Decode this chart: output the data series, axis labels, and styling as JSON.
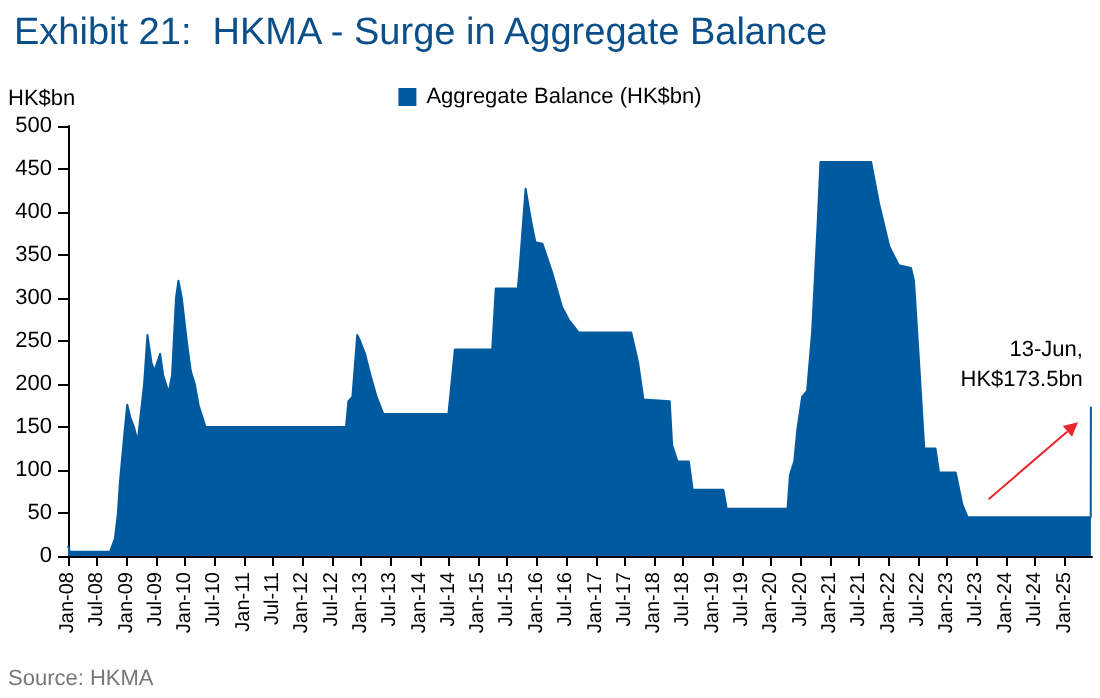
{
  "chart_data": {
    "type": "area",
    "title": "Exhibit 21:  HKMA - Surge in Aggregate Balance",
    "ylabel": "HK$bn",
    "annotations": [
      {
        "text": "13-Jun,\nHK$173.5bn",
        "x": "2025-06-13",
        "y": 173.5
      },
      "Source: HKMA"
    ],
    "x": [
      "2008-01-01",
      "2008-01-13",
      "2008-09-19",
      "2008-10-19",
      "2008-11-07",
      "2008-11-19",
      "2008-12-16",
      "2009-01-04",
      "2009-01-25",
      "2009-02-15",
      "2009-03-10",
      "2009-04-01",
      "2009-04-19",
      "2009-05-10",
      "2009-06-04",
      "2009-06-22",
      "2009-07-28",
      "2009-08-16",
      "2009-09-19",
      "2009-10-10",
      "2009-11-04",
      "2009-11-19",
      "2009-12-10",
      "2010-01-10",
      "2010-02-04",
      "2010-03-01",
      "2010-03-25",
      "2010-05-07",
      "2012-09-28",
      "2012-10-13",
      "2012-11-07",
      "2012-12-07",
      "2012-12-25",
      "2013-01-25",
      "2013-02-28",
      "2013-04-07",
      "2013-05-19",
      "2014-06-28",
      "2014-08-07",
      "2015-03-28",
      "2015-04-19",
      "2015-08-22",
      "2015-08-28",
      "2015-09-13",
      "2015-10-22",
      "2015-11-25",
      "2015-12-22",
      "2016-02-04",
      "2016-04-04",
      "2016-06-04",
      "2016-07-16",
      "2016-09-16",
      "2017-08-10",
      "2017-09-22",
      "2017-10-25",
      "2018-04-07",
      "2018-04-22",
      "2018-05-25",
      "2018-08-04",
      "2018-08-28",
      "2019-03-07",
      "2019-03-28",
      "2020-04-10",
      "2020-04-25",
      "2020-05-22",
      "2020-06-10",
      "2020-07-10",
      "2020-08-10",
      "2020-09-10",
      "2020-10-13",
      "2020-11-01",
      "2021-09-13",
      "2021-11-01",
      "2022-01-04",
      "2022-03-04",
      "2022-05-19",
      "2022-06-07",
      "2022-07-07",
      "2022-08-10",
      "2022-10-19",
      "2022-11-10",
      "2023-02-22",
      "2023-04-04",
      "2023-05-07",
      "2025-06-12",
      "2025-06-13"
    ],
    "series": [
      {
        "name": "Aggregate Balance (HK$bn)",
        "color": "#005aa0",
        "values": [
          12,
          5,
          5,
          20,
          50,
          85,
          140,
          176,
          160,
          150,
          133,
          170,
          200,
          257,
          225,
          215,
          235,
          210,
          190,
          210,
          300,
          320,
          300,
          250,
          215,
          200,
          175,
          150,
          150,
          180,
          185,
          257,
          250,
          235,
          210,
          185,
          165,
          165,
          240,
          240,
          311,
          311,
          300,
          330,
          427,
          390,
          365,
          363,
          330,
          290,
          275,
          260,
          260,
          225,
          182,
          180,
          129,
          110,
          110,
          77,
          77,
          55,
          55,
          94,
          110,
          147,
          185,
          192,
          260,
          380,
          458,
          458,
          410,
          360,
          338,
          335,
          320,
          230,
          125,
          125,
          97,
          97,
          60,
          45,
          45,
          173.5
        ]
      }
    ],
    "xlim": [
      "2008-01-01",
      "2025-06-20"
    ],
    "xticks": [
      {
        "value": "2008-01-01",
        "label": "Jan-08"
      },
      {
        "value": "2008-07-01",
        "label": "Jul-08"
      },
      {
        "value": "2009-01-01",
        "label": "Jan-09"
      },
      {
        "value": "2009-07-01",
        "label": "Jul-09"
      },
      {
        "value": "2010-01-01",
        "label": "Jan-10"
      },
      {
        "value": "2010-07-01",
        "label": "Jul-10"
      },
      {
        "value": "2011-01-01",
        "label": "Jan-11"
      },
      {
        "value": "2011-07-01",
        "label": "Jul-11"
      },
      {
        "value": "2012-01-01",
        "label": "Jan-12"
      },
      {
        "value": "2012-07-01",
        "label": "Jul-12"
      },
      {
        "value": "2013-01-01",
        "label": "Jan-13"
      },
      {
        "value": "2013-07-01",
        "label": "Jul-13"
      },
      {
        "value": "2014-01-01",
        "label": "Jan-14"
      },
      {
        "value": "2014-07-01",
        "label": "Jul-14"
      },
      {
        "value": "2015-01-01",
        "label": "Jan-15"
      },
      {
        "value": "2015-07-01",
        "label": "Jul-15"
      },
      {
        "value": "2016-01-01",
        "label": "Jan-16"
      },
      {
        "value": "2016-07-01",
        "label": "Jul-16"
      },
      {
        "value": "2017-01-01",
        "label": "Jan-17"
      },
      {
        "value": "2017-07-01",
        "label": "Jul-17"
      },
      {
        "value": "2018-01-01",
        "label": "Jan-18"
      },
      {
        "value": "2018-07-01",
        "label": "Jul-18"
      },
      {
        "value": "2019-01-01",
        "label": "Jan-19"
      },
      {
        "value": "2019-07-01",
        "label": "Jul-19"
      },
      {
        "value": "2020-01-01",
        "label": "Jan-20"
      },
      {
        "value": "2020-07-01",
        "label": "Jul-20"
      },
      {
        "value": "2021-01-01",
        "label": "Jan-21"
      },
      {
        "value": "2021-07-01",
        "label": "Jul-21"
      },
      {
        "value": "2022-01-01",
        "label": "Jan-22"
      },
      {
        "value": "2022-07-01",
        "label": "Jul-22"
      },
      {
        "value": "2023-01-01",
        "label": "Jan-23"
      },
      {
        "value": "2023-07-01",
        "label": "Jul-23"
      },
      {
        "value": "2024-01-01",
        "label": "Jan-24"
      },
      {
        "value": "2024-07-01",
        "label": "Jul-24"
      },
      {
        "value": "2025-01-01",
        "label": "Jan-25"
      }
    ],
    "ylim": [
      0,
      500
    ],
    "yticks": [
      0,
      50,
      100,
      150,
      200,
      250,
      300,
      350,
      400,
      450,
      500
    ],
    "legend": "top",
    "grid": false
  }
}
